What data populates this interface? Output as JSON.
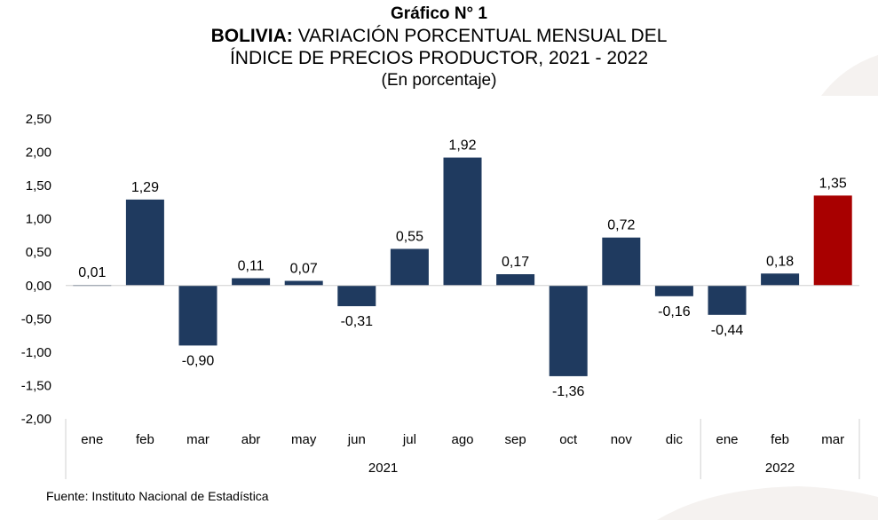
{
  "header": {
    "chart_number": "Gráfico N° 1",
    "title_bold": "BOLIVIA:",
    "title_line1_rest": "VARIACIÓN PORCENTUAL MENSUAL DEL",
    "title_line2": "ÍNDICE DE PRECIOS PRODUCTOR, 2021 - 2022",
    "subtitle": "(En porcentaje)"
  },
  "footer": {
    "source": "Fuente: Instituto Nacional de Estadística"
  },
  "colors": {
    "bar_default": "#1f3a5f",
    "bar_highlight": "#a80000",
    "axis_line": "#d0d0d0",
    "decoration": "#f5f2f0"
  },
  "chart_data": {
    "type": "bar",
    "title": "BOLIVIA: VARIACIÓN PORCENTUAL MENSUAL DEL ÍNDICE DE PRECIOS PRODUCTOR, 2021 - 2022",
    "subtitle": "(En porcentaje)",
    "categories": [
      "ene",
      "feb",
      "mar",
      "abr",
      "may",
      "jun",
      "jul",
      "ago",
      "sep",
      "oct",
      "nov",
      "dic",
      "ene",
      "feb",
      "mar"
    ],
    "values": [
      0.01,
      1.29,
      -0.9,
      0.11,
      0.07,
      -0.31,
      0.55,
      1.92,
      0.17,
      -1.36,
      0.72,
      -0.16,
      -0.44,
      0.18,
      1.35
    ],
    "value_labels": [
      "0,01",
      "1,29",
      "-0,90",
      "0,11",
      "0,07",
      "-0,31",
      "0,55",
      "1,92",
      "0,17",
      "-1,36",
      "0,72",
      "-0,16",
      "-0,44",
      "0,18",
      "1,35"
    ],
    "highlight_index": 14,
    "groups": [
      {
        "label": "2021",
        "from": 0,
        "to": 11
      },
      {
        "label": "2022",
        "from": 12,
        "to": 14
      }
    ],
    "ylim": [
      -2.0,
      2.5
    ],
    "yticks": [
      2.5,
      2.0,
      1.5,
      1.0,
      0.5,
      0.0,
      -0.5,
      -1.0,
      -1.5,
      -2.0
    ],
    "ytick_labels": [
      "2,50",
      "2,00",
      "1,50",
      "1,00",
      "0,50",
      "0,00",
      "-0,50",
      "-1,00",
      "-1,50",
      "-2,00"
    ],
    "xlabel": "",
    "ylabel": "",
    "grid": false,
    "legend": "none"
  }
}
